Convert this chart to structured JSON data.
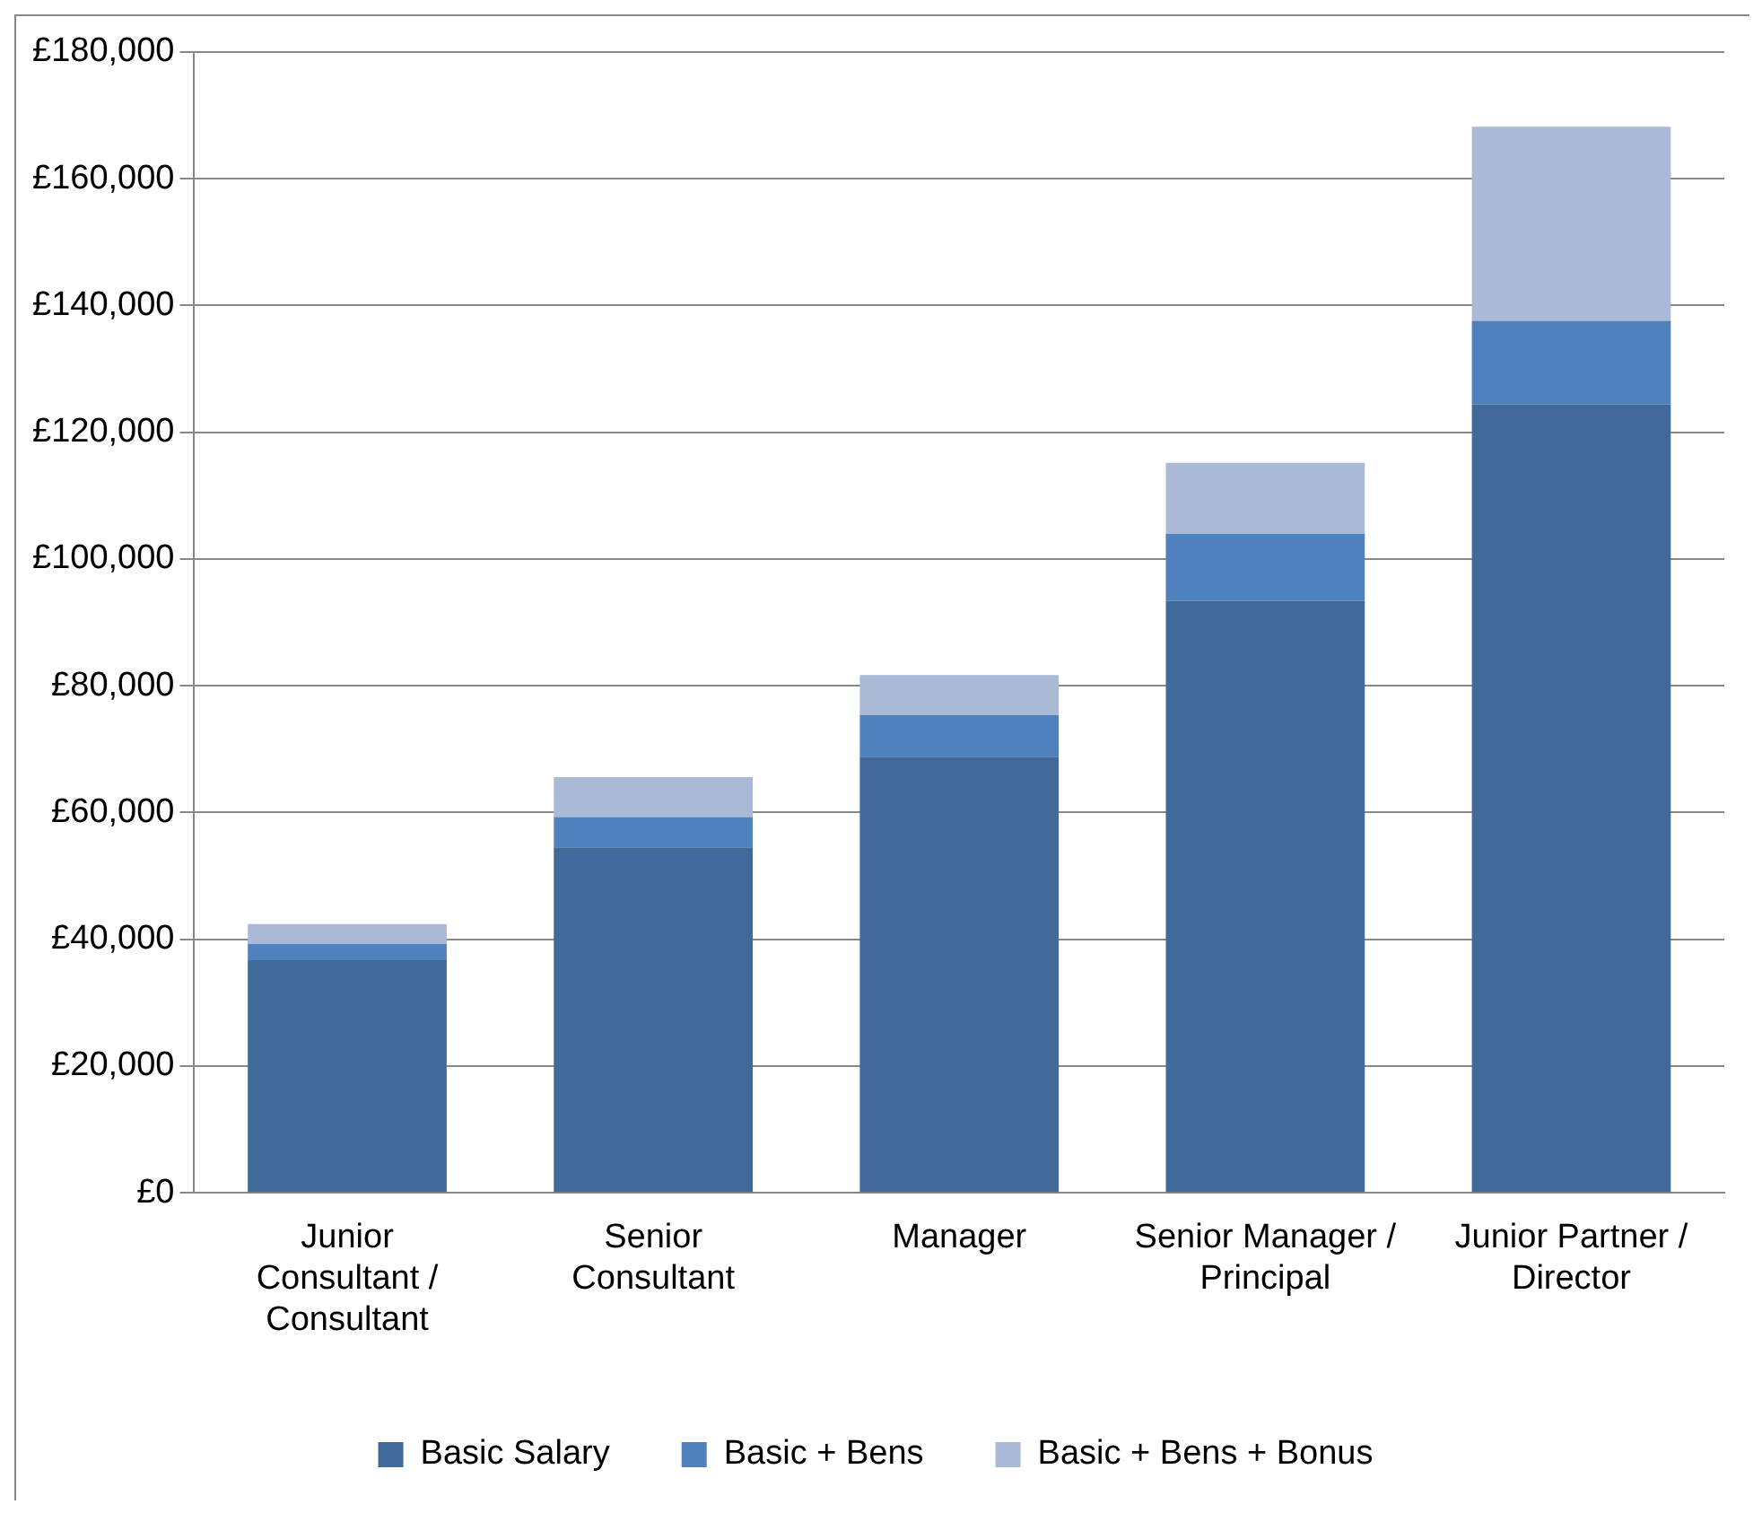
{
  "chart_data": {
    "type": "bar",
    "stacked": true,
    "categories": [
      "Junior Consultant / Consultant",
      "Senior Consultant",
      "Manager",
      "Senior Manager / Principal",
      "Junior Partner / Director"
    ],
    "series": [
      {
        "name": "Basic Salary",
        "color": "#416a9b",
        "values": [
          36700,
          54500,
          68800,
          93400,
          124400
        ]
      },
      {
        "name": "Basic + Bens",
        "color": "#4f81bd",
        "values": [
          2600,
          4800,
          6600,
          10600,
          13200
        ]
      },
      {
        "name": "Basic + Bens + Bonus",
        "color": "#aab9d6",
        "values": [
          3100,
          6300,
          6300,
          11200,
          30600
        ]
      }
    ],
    "ylim": [
      0,
      180000
    ],
    "yticks": [
      {
        "value": 0,
        "label": "£0"
      },
      {
        "value": 20000,
        "label": "£20,000"
      },
      {
        "value": 40000,
        "label": "£40,000"
      },
      {
        "value": 60000,
        "label": "£60,000"
      },
      {
        "value": 80000,
        "label": "£80,000"
      },
      {
        "value": 100000,
        "label": "£100,000"
      },
      {
        "value": 120000,
        "label": "£120,000"
      },
      {
        "value": 140000,
        "label": "£140,000"
      },
      {
        "value": 160000,
        "label": "£160,000"
      },
      {
        "value": 180000,
        "label": "£180,000"
      }
    ],
    "grid": "y",
    "legend": "bottom"
  }
}
